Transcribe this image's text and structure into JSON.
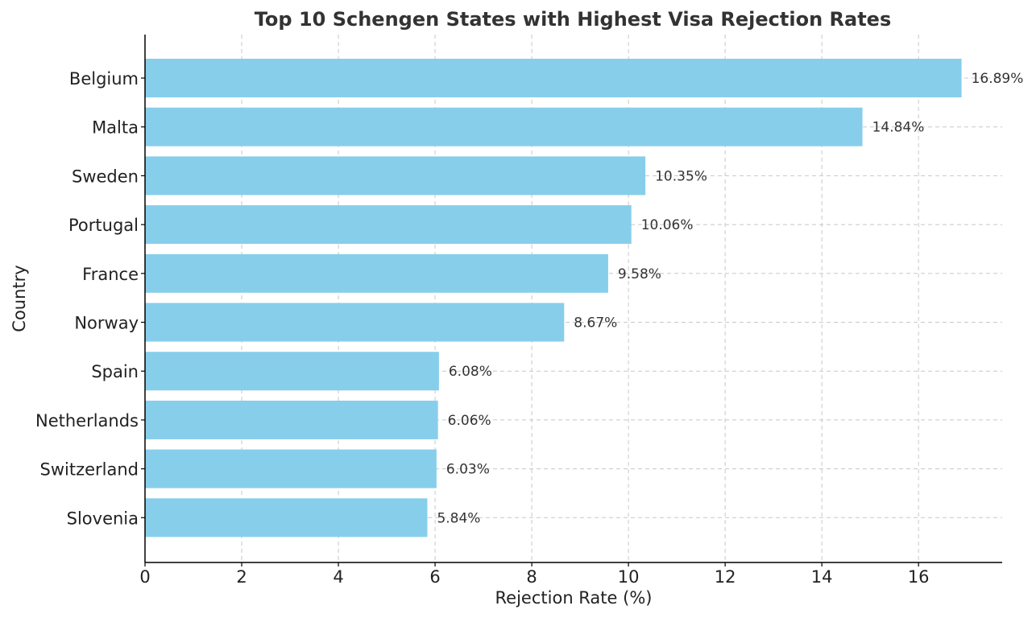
{
  "chart_data": {
    "type": "bar",
    "orientation": "horizontal",
    "title": "Top 10 Schengen States with Highest Visa Rejection Rates",
    "xlabel": "Rejection Rate (%)",
    "ylabel": "Country",
    "categories": [
      "Belgium",
      "Malta",
      "Sweden",
      "Portugal",
      "France",
      "Norway",
      "Spain",
      "Netherlands",
      "Switzerland",
      "Slovenia"
    ],
    "values": [
      16.89,
      14.84,
      10.35,
      10.06,
      9.58,
      8.67,
      6.08,
      6.06,
      6.03,
      5.84
    ],
    "data_labels": [
      "16.89%",
      "14.84%",
      "10.35%",
      "10.06%",
      "9.58%",
      "8.67%",
      "6.08%",
      "6.06%",
      "6.03%",
      "5.84%"
    ],
    "xlim": [
      0,
      17.73
    ],
    "xticks": [
      0,
      2,
      4,
      6,
      8,
      10,
      12,
      14,
      16
    ],
    "grid": true,
    "bar_color": "#87ceeb"
  }
}
